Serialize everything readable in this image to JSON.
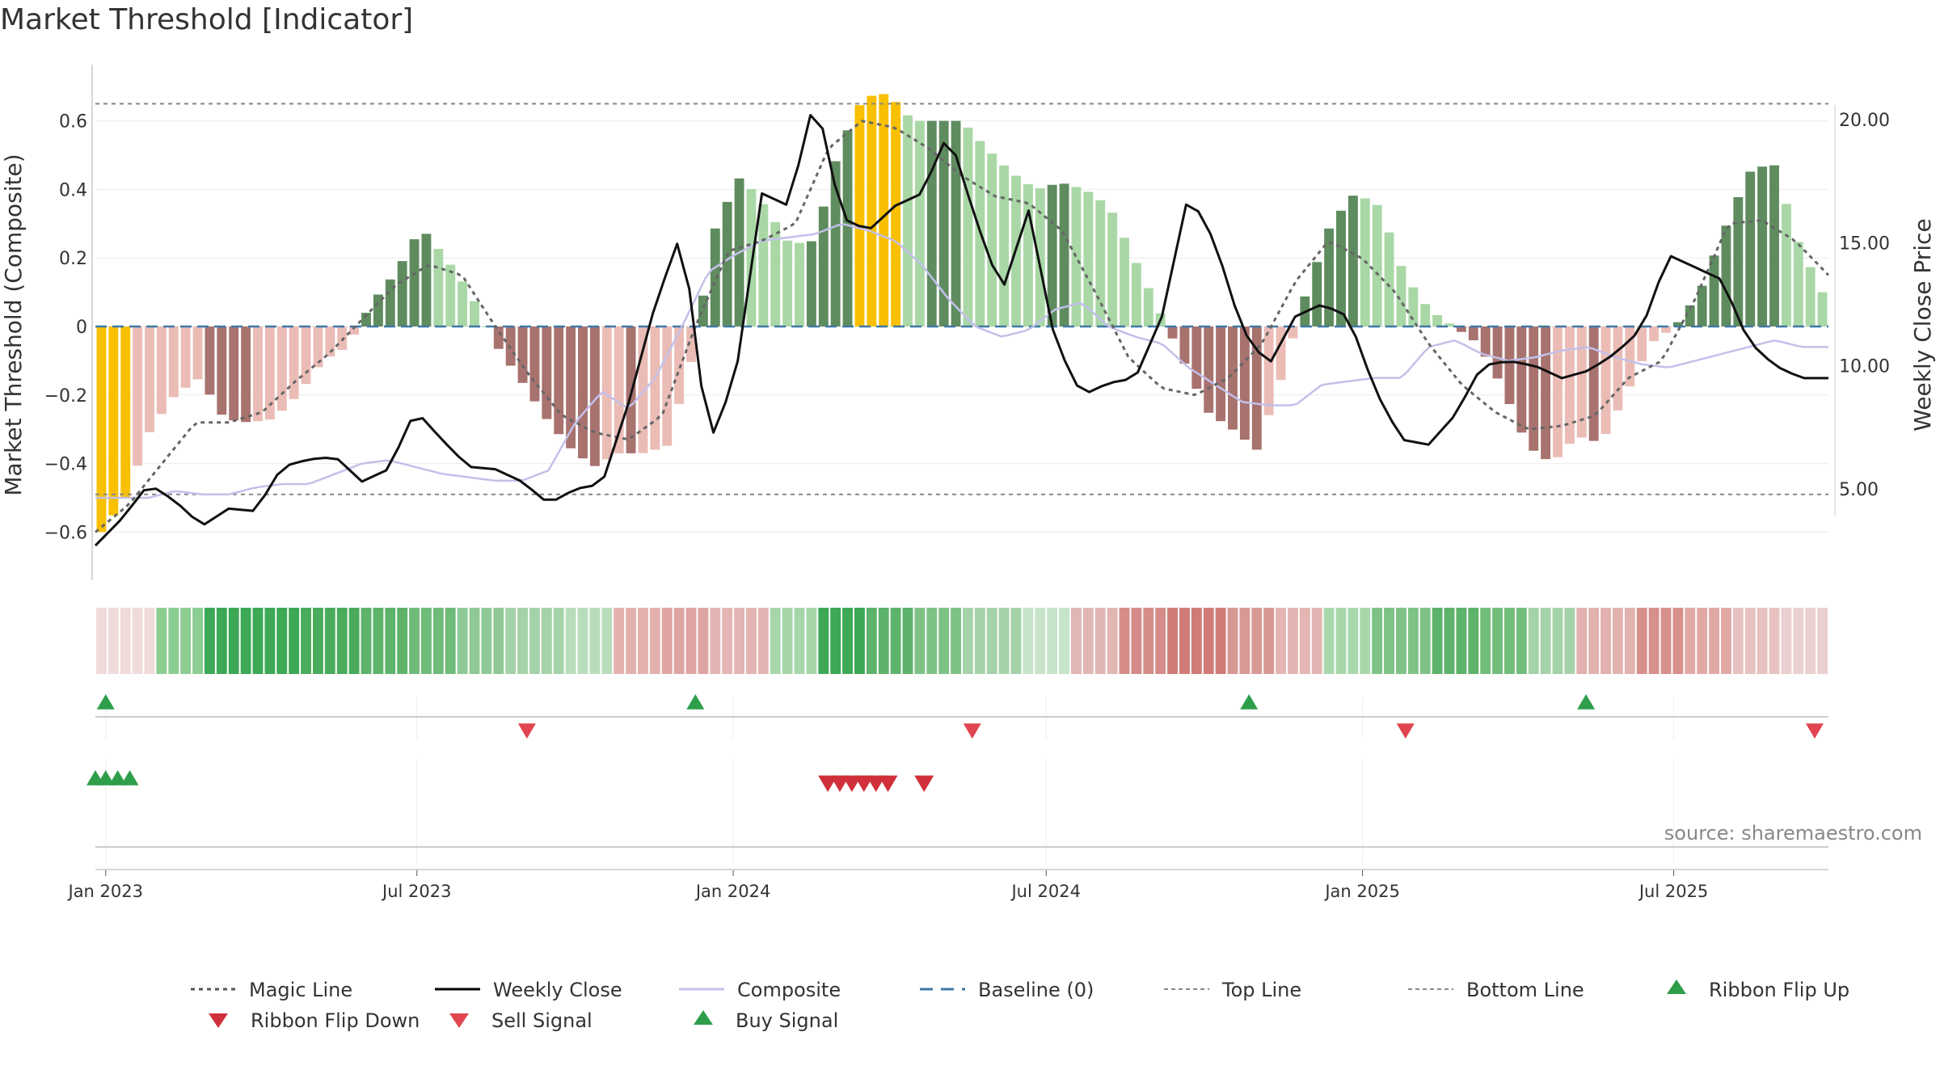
{
  "title": "Market Threshold [Indicator]",
  "source_note": "source: sharemaestro.com",
  "chart_data": {
    "type": "bar",
    "title": "Market Threshold [Indicator]",
    "ylabel_left": "Market Threshold (Composite)",
    "ylabel_right": "Weekly Close Price",
    "ylim_left": [
      -0.75,
      0.76
    ],
    "ylim_right": [
      0,
      22.5
    ],
    "left_ticks": [
      0.6,
      0.4,
      0.2,
      0,
      -0.2,
      -0.4,
      -0.6
    ],
    "left_tick_labels": [
      "0.6",
      "0.4",
      "0.2",
      "0",
      "−0.2",
      "−0.4",
      "−0.6"
    ],
    "right_ticks": [
      20,
      15,
      10,
      5
    ],
    "right_tick_labels": [
      "20.00",
      "15.00",
      "10.00",
      "5.00"
    ],
    "x_start": "2022-12-26",
    "x_end": "2025-09-29",
    "x_ticks": [
      "2023-01-01",
      "2023-07-01",
      "2024-01-01",
      "2024-07-01",
      "2025-01-01",
      "2025-07-01"
    ],
    "x_tick_labels": [
      "Jan 2023",
      "Jul 2023",
      "Jan 2024",
      "Jul 2024",
      "Jan 2025",
      "Jul 2025"
    ],
    "top_line": 0.65,
    "bottom_line": -0.49,
    "grid": true,
    "legend_position": "bottom",
    "anchor_weeks": [
      0,
      2,
      4,
      6,
      8,
      10,
      12,
      14,
      16,
      18,
      20,
      22,
      24,
      26,
      28,
      30,
      32,
      34,
      36,
      38,
      40,
      42,
      44,
      46,
      48,
      50,
      52,
      54,
      56,
      58,
      60,
      62,
      64,
      66,
      68,
      70,
      72,
      74,
      76,
      78,
      80,
      82,
      84,
      86,
      88,
      90,
      92,
      94,
      96,
      98,
      100,
      102,
      104,
      106,
      108,
      110,
      112,
      114,
      116,
      118,
      120,
      122,
      124,
      126,
      128,
      130,
      132,
      134,
      136,
      138,
      140
    ],
    "composite_anchors": [
      -0.6,
      -0.5,
      -0.3,
      -0.2,
      -0.15,
      -0.27,
      -0.28,
      -0.27,
      -0.2,
      -0.1,
      -0.06,
      0.07,
      0.16,
      0.29,
      0.2,
      0.1,
      -0.05,
      -0.15,
      -0.26,
      -0.35,
      -0.41,
      -0.37,
      -0.37,
      -0.35,
      -0.1,
      0.3,
      0.44,
      0.35,
      0.24,
      0.25,
      0.52,
      0.67,
      0.68,
      0.6,
      0.6,
      0.6,
      0.52,
      0.45,
      0.4,
      0.42,
      0.4,
      0.35,
      0.2,
      0.05,
      -0.1,
      -0.25,
      -0.3,
      -0.36,
      -0.15,
      0.1,
      0.3,
      0.39,
      0.35,
      0.15,
      0.05,
      0.0,
      -0.05,
      -0.18,
      -0.35,
      -0.4,
      -0.32,
      -0.34,
      -0.2,
      -0.05,
      0.0,
      0.1,
      0.28,
      0.45,
      0.48,
      0.25,
      0.1
    ],
    "price_anchors": [
      2.7,
      3.8,
      5.2,
      4.5,
      3.5,
      4.2,
      4.1,
      5.9,
      6.2,
      6.3,
      5.3,
      5.8,
      8.2,
      7.0,
      5.9,
      5.8,
      5.3,
      4.4,
      5.0,
      5.2,
      8.5,
      12.5,
      15.5,
      6.8,
      9.5,
      17.0,
      16.5,
      21.0,
      16.0,
      15.5,
      16.5,
      17.0,
      19.5,
      16.0,
      13.0,
      16.3,
      11.0,
      8.8,
      9.3,
      9.5,
      12.0,
      17.0,
      15.0,
      11.5,
      10.0,
      12.0,
      12.5,
      12.0,
      9.0,
      7.0,
      6.8,
      8.0,
      10.0,
      10.2,
      10.0,
      9.5,
      9.8,
      10.5,
      11.5,
      14.5,
      14.0,
      13.5,
      11.0,
      10.0,
      9.5,
      9.5
    ],
    "composite_line_anchors": [
      -0.5,
      -0.5,
      -0.5,
      -0.48,
      -0.49,
      -0.49,
      -0.47,
      -0.46,
      -0.46,
      -0.43,
      -0.4,
      -0.39,
      -0.41,
      -0.43,
      -0.44,
      -0.45,
      -0.45,
      -0.42,
      -0.28,
      -0.19,
      -0.24,
      -0.15,
      0.0,
      0.16,
      0.21,
      0.25,
      0.26,
      0.27,
      0.3,
      0.28,
      0.25,
      0.18,
      0.08,
      0.0,
      -0.03,
      -0.01,
      0.05,
      0.07,
      0.0,
      -0.03,
      -0.05,
      -0.12,
      -0.17,
      -0.22,
      -0.23,
      -0.23,
      -0.17,
      -0.16,
      -0.15,
      -0.15,
      -0.06,
      -0.04,
      -0.08,
      -0.1,
      -0.09,
      -0.07,
      -0.06,
      -0.09,
      -0.11,
      -0.12,
      -0.1,
      -0.08,
      -0.06,
      -0.04,
      -0.06,
      -0.06
    ],
    "magic_line_anchors": [
      -0.6,
      -0.52,
      -0.4,
      -0.28,
      -0.28,
      -0.25,
      -0.16,
      -0.08,
      0.02,
      0.12,
      0.18,
      0.15,
      0.0,
      -0.14,
      -0.26,
      -0.31,
      -0.33,
      -0.26,
      0.0,
      0.22,
      0.25,
      0.3,
      0.52,
      0.6,
      0.58,
      0.52,
      0.44,
      0.38,
      0.36,
      0.28,
      0.1,
      -0.09,
      -0.18,
      -0.2,
      -0.15,
      -0.05,
      0.13,
      0.25,
      0.2,
      0.1,
      -0.05,
      -0.17,
      -0.25,
      -0.3,
      -0.29,
      -0.26,
      -0.15,
      -0.1,
      0.08,
      0.3,
      0.31,
      0.25,
      0.15
    ],
    "ribbon_colors": [
      "#f1dada",
      "#8ccd92",
      "#3da856",
      "#3da856",
      "#4aab5c",
      "#5db36a",
      "#6fbb79",
      "#8fca96",
      "#a5d3a9",
      "#b9ddbb",
      "#e3b1ae",
      "#dfa5a2",
      "#e4b5b2",
      "#a6d6aa",
      "#3da856",
      "#5db36a",
      "#7ec285",
      "#a5d3a9",
      "#c7e3c8",
      "#e2b6b3",
      "#d68c88",
      "#cf7c78",
      "#d69994",
      "#e4b5b2",
      "#a9d7ac",
      "#7ec285",
      "#5db36a",
      "#73bd7b",
      "#a5d3a9",
      "#e2b2af",
      "#d7908c",
      "#e0a9a6",
      "#e8c2c0",
      "#ead0cf"
    ],
    "buy_signals": [
      "2023-01-01",
      "2023-12-10",
      "2024-10-27",
      "2025-05-11"
    ],
    "sell_signals": [
      "2023-09-03",
      "2024-05-19",
      "2025-01-26",
      "2025-09-21"
    ],
    "ribbon_flip_up": [
      "2022-12-26",
      "2023-01-01",
      "2023-01-08",
      "2023-01-15"
    ],
    "ribbon_flip_down": [
      "2024-02-25",
      "2024-03-03",
      "2024-03-10",
      "2024-03-17",
      "2024-03-24",
      "2024-03-31",
      "2024-04-21"
    ]
  },
  "legend": [
    {
      "label": "Magic Line",
      "symbol": "dotted",
      "color": "#555555"
    },
    {
      "label": "Weekly Close",
      "symbol": "solid",
      "color": "#000000"
    },
    {
      "label": "Composite",
      "symbol": "solid",
      "color": "#c3c0ea"
    },
    {
      "label": "Baseline (0)",
      "symbol": "dashed",
      "color": "#3e78a6"
    },
    {
      "label": "Top Line",
      "symbol": "fine-dash",
      "color": "#888888"
    },
    {
      "label": "Bottom Line",
      "symbol": "fine-dash",
      "color": "#888888"
    },
    {
      "label": "Ribbon Flip Up",
      "symbol": "triangle-up",
      "color": "#2e9e4a"
    },
    {
      "label": "Ribbon Flip Down",
      "symbol": "triangle-down",
      "color": "#d0303a"
    },
    {
      "label": "Sell Signal",
      "symbol": "triangle-down",
      "color": "#e04550"
    },
    {
      "label": "Buy Signal",
      "symbol": "triangle-up",
      "color": "#2e9e4a"
    }
  ],
  "colors": {
    "gold": "#f8c000",
    "green_strong": "#5f8c5f",
    "green_light": "#a9d8a6",
    "red_strong": "#a8726f",
    "red_light": "#ebbcb6",
    "composite_line": "#c3c0ea",
    "baseline": "#3e78a6",
    "buy": "#2e9e4a",
    "sell": "#e04550"
  }
}
